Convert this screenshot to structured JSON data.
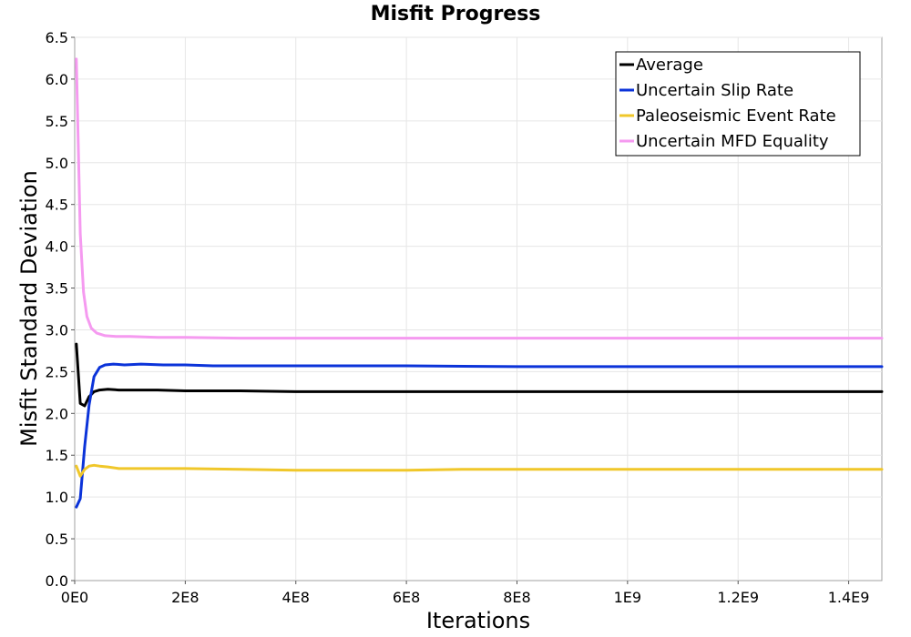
{
  "chart_data": {
    "type": "line",
    "title": "Misfit Progress",
    "xlabel": "Iterations",
    "ylabel": "Misfit Standard Deviation",
    "xlim": [
      0,
      1460000000
    ],
    "ylim": [
      0,
      6.5
    ],
    "x_ticks": [
      {
        "value": 0,
        "label": "0E0"
      },
      {
        "value": 200000000,
        "label": "2E8"
      },
      {
        "value": 400000000,
        "label": "4E8"
      },
      {
        "value": 600000000,
        "label": "6E8"
      },
      {
        "value": 800000000,
        "label": "8E8"
      },
      {
        "value": 1000000000,
        "label": "1E9"
      },
      {
        "value": 1200000000,
        "label": "1.2E9"
      },
      {
        "value": 1400000000,
        "label": "1.4E9"
      }
    ],
    "y_ticks": [
      {
        "value": 0.0,
        "label": "0.0"
      },
      {
        "value": 0.5,
        "label": "0.5"
      },
      {
        "value": 1.0,
        "label": "1.0"
      },
      {
        "value": 1.5,
        "label": "1.5"
      },
      {
        "value": 2.0,
        "label": "2.0"
      },
      {
        "value": 2.5,
        "label": "2.5"
      },
      {
        "value": 3.0,
        "label": "3.0"
      },
      {
        "value": 3.5,
        "label": "3.5"
      },
      {
        "value": 4.0,
        "label": "4.0"
      },
      {
        "value": 4.5,
        "label": "4.5"
      },
      {
        "value": 5.0,
        "label": "5.0"
      },
      {
        "value": 5.5,
        "label": "5.5"
      },
      {
        "value": 6.0,
        "label": "6.0"
      },
      {
        "value": 6.5,
        "label": "6.5"
      }
    ],
    "grid": true,
    "legend_position": "top-right",
    "series": [
      {
        "name": "Average",
        "color": "#000000",
        "points": [
          [
            3000000,
            2.83
          ],
          [
            10000000,
            2.12
          ],
          [
            18000000,
            2.09
          ],
          [
            26000000,
            2.2
          ],
          [
            35000000,
            2.26
          ],
          [
            45000000,
            2.28
          ],
          [
            60000000,
            2.29
          ],
          [
            80000000,
            2.28
          ],
          [
            100000000,
            2.28
          ],
          [
            150000000,
            2.28
          ],
          [
            200000000,
            2.27
          ],
          [
            300000000,
            2.27
          ],
          [
            400000000,
            2.26
          ],
          [
            600000000,
            2.26
          ],
          [
            800000000,
            2.26
          ],
          [
            1000000000,
            2.26
          ],
          [
            1200000000,
            2.26
          ],
          [
            1460000000,
            2.26
          ]
        ]
      },
      {
        "name": "Uncertain Slip Rate",
        "color": "#0b33d9",
        "points": [
          [
            3000000,
            0.88
          ],
          [
            10000000,
            0.98
          ],
          [
            18000000,
            1.6
          ],
          [
            26000000,
            2.1
          ],
          [
            35000000,
            2.44
          ],
          [
            45000000,
            2.55
          ],
          [
            55000000,
            2.58
          ],
          [
            70000000,
            2.59
          ],
          [
            90000000,
            2.58
          ],
          [
            120000000,
            2.59
          ],
          [
            160000000,
            2.58
          ],
          [
            200000000,
            2.58
          ],
          [
            250000000,
            2.57
          ],
          [
            300000000,
            2.57
          ],
          [
            400000000,
            2.57
          ],
          [
            600000000,
            2.57
          ],
          [
            800000000,
            2.56
          ],
          [
            1000000000,
            2.56
          ],
          [
            1200000000,
            2.56
          ],
          [
            1460000000,
            2.56
          ]
        ]
      },
      {
        "name": "Paleoseismic Event Rate",
        "color": "#f0c72a",
        "points": [
          [
            3000000,
            1.37
          ],
          [
            10000000,
            1.25
          ],
          [
            18000000,
            1.33
          ],
          [
            26000000,
            1.37
          ],
          [
            35000000,
            1.38
          ],
          [
            45000000,
            1.37
          ],
          [
            60000000,
            1.36
          ],
          [
            80000000,
            1.34
          ],
          [
            120000000,
            1.34
          ],
          [
            200000000,
            1.34
          ],
          [
            300000000,
            1.33
          ],
          [
            400000000,
            1.32
          ],
          [
            500000000,
            1.32
          ],
          [
            600000000,
            1.32
          ],
          [
            700000000,
            1.33
          ],
          [
            800000000,
            1.33
          ],
          [
            1000000000,
            1.33
          ],
          [
            1200000000,
            1.33
          ],
          [
            1460000000,
            1.33
          ]
        ]
      },
      {
        "name": "Uncertain MFD Equality",
        "color": "#f59af0",
        "points": [
          [
            3000000,
            6.24
          ],
          [
            10000000,
            4.15
          ],
          [
            16000000,
            3.45
          ],
          [
            22000000,
            3.16
          ],
          [
            30000000,
            3.02
          ],
          [
            40000000,
            2.96
          ],
          [
            55000000,
            2.93
          ],
          [
            75000000,
            2.92
          ],
          [
            100000000,
            2.92
          ],
          [
            150000000,
            2.91
          ],
          [
            200000000,
            2.91
          ],
          [
            300000000,
            2.9
          ],
          [
            500000000,
            2.9
          ],
          [
            700000000,
            2.9
          ],
          [
            1000000000,
            2.9
          ],
          [
            1200000000,
            2.9
          ],
          [
            1460000000,
            2.9
          ]
        ]
      }
    ]
  }
}
